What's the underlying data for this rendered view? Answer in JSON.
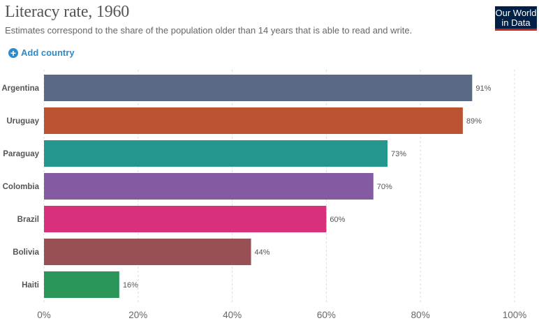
{
  "header": {
    "title": "Literacy rate, 1960",
    "subtitle": "Estimates correspond to the share of the population older than 14 years that is able to read and write."
  },
  "logo": {
    "line1": "Our World",
    "line2": "in Data"
  },
  "controls": {
    "add_country_label": "Add country",
    "add_icon": "plus-circle-icon"
  },
  "colors": {
    "accent": "#2d8acb",
    "logo_bg": "#002147",
    "logo_bar": "#ce261e"
  },
  "chart_data": {
    "type": "bar",
    "orientation": "horizontal",
    "title": "Literacy rate, 1960",
    "categories": [
      "Argentina",
      "Uruguay",
      "Paraguay",
      "Colombia",
      "Brazil",
      "Bolivia",
      "Haiti"
    ],
    "values": [
      91,
      89,
      73,
      70,
      60,
      44,
      16
    ],
    "value_labels": [
      "91%",
      "89%",
      "73%",
      "70%",
      "60%",
      "44%",
      "16%"
    ],
    "colors": [
      "#5a6a84",
      "#bb5330",
      "#25968e",
      "#845ba3",
      "#d9307c",
      "#995055",
      "#2a9558"
    ],
    "xlim": [
      0,
      100
    ],
    "xticks": [
      0,
      20,
      40,
      60,
      80,
      100
    ],
    "xtick_labels": [
      "0%",
      "20%",
      "40%",
      "60%",
      "80%",
      "100%"
    ],
    "grid": true
  }
}
